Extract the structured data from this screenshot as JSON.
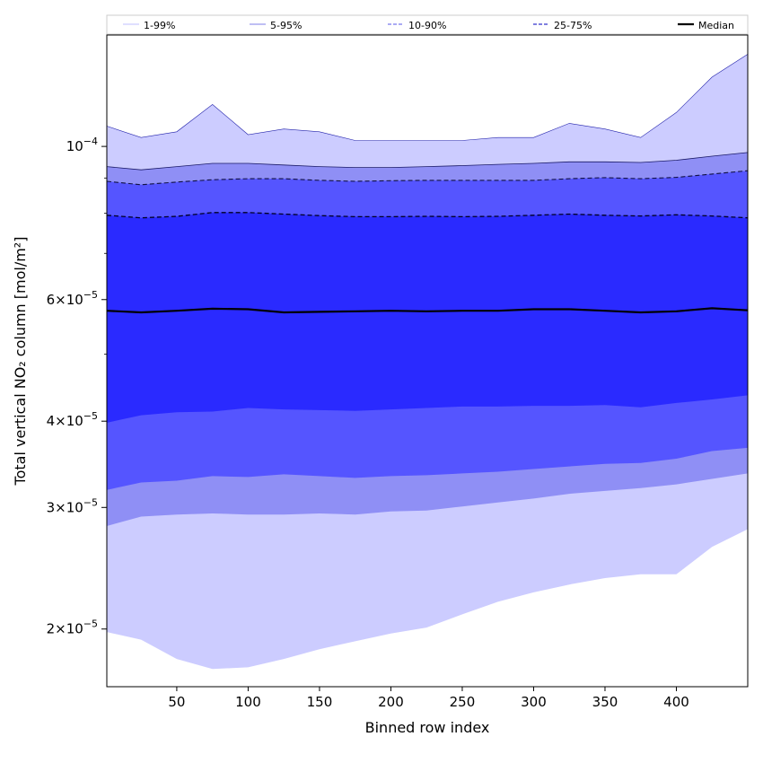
{
  "chart_data": {
    "type": "area",
    "xlabel": "Binned row index",
    "ylabel": "Total vertical NO₂ column [mol/m²]",
    "yscale": "log",
    "xlim": [
      1,
      450
    ],
    "ylim": [
      1.65e-05,
      0.000145
    ],
    "x_ticks": [
      50,
      100,
      150,
      200,
      250,
      300,
      350,
      400
    ],
    "y_ticks": [
      {
        "value": 0.0001,
        "mant": "",
        "exp": "−4"
      },
      {
        "value": 6e-05,
        "mant": "6",
        "exp": "−5"
      },
      {
        "value": 4e-05,
        "mant": "4",
        "exp": "−5"
      },
      {
        "value": 3e-05,
        "mant": "3",
        "exp": "−5"
      },
      {
        "value": 2e-05,
        "mant": "2",
        "exp": "−5"
      }
    ],
    "y_minor_ticks": [
      5e-05,
      7e-05,
      8e-05,
      9e-05
    ],
    "legend": {
      "position": "top",
      "entries": [
        {
          "label": "1-99%",
          "color": "#ccccff",
          "style": "solid"
        },
        {
          "label": "5-95%",
          "color": "#9999ee",
          "style": "solid"
        },
        {
          "label": "10-90%",
          "color": "#7777ee",
          "style": "dashed"
        },
        {
          "label": "25-75%",
          "color": "#3333cc",
          "style": "dashed"
        },
        {
          "label": "Median",
          "color": "#000000",
          "style": "solid"
        }
      ]
    },
    "x": [
      1,
      25,
      50,
      75,
      100,
      125,
      150,
      175,
      200,
      225,
      250,
      275,
      300,
      325,
      350,
      375,
      400,
      425,
      450
    ],
    "bands": [
      {
        "name": "1-99%",
        "color": "#ccccff",
        "lower": [
          1.98e-05,
          1.93e-05,
          1.81e-05,
          1.75e-05,
          1.76e-05,
          1.81e-05,
          1.87e-05,
          1.92e-05,
          1.97e-05,
          2.01e-05,
          2.1e-05,
          2.19e-05,
          2.26e-05,
          2.32e-05,
          2.37e-05,
          2.4e-05,
          2.4e-05,
          2.63e-05,
          2.79e-05
        ],
        "upper": [
          0.000107,
          0.000103,
          0.000105,
          0.000115,
          0.000104,
          0.000106,
          0.000105,
          0.000102,
          0.000102,
          0.000102,
          0.000102,
          0.000103,
          0.000103,
          0.000108,
          0.000106,
          0.000103,
          0.000112,
          0.000126,
          0.000136
        ]
      },
      {
        "name": "5-95%",
        "color": "#8f8ff5",
        "lower": [
          2.82e-05,
          2.91e-05,
          2.93e-05,
          2.94e-05,
          2.93e-05,
          2.93e-05,
          2.94e-05,
          2.93e-05,
          2.96e-05,
          2.97e-05,
          3.01e-05,
          3.05e-05,
          3.09e-05,
          3.14e-05,
          3.17e-05,
          3.2e-05,
          3.24e-05,
          3.3e-05,
          3.36e-05
        ],
        "upper": [
          9.35e-05,
          9.25e-05,
          9.35e-05,
          9.45e-05,
          9.45e-05,
          9.4e-05,
          9.35e-05,
          9.32e-05,
          9.32e-05,
          9.35e-05,
          9.38e-05,
          9.42e-05,
          9.45e-05,
          9.5e-05,
          9.5e-05,
          9.48e-05,
          9.55e-05,
          9.68e-05,
          9.8e-05
        ]
      },
      {
        "name": "10-90%",
        "color": "#5555ff",
        "lower": [
          3.18e-05,
          3.26e-05,
          3.28e-05,
          3.33e-05,
          3.32e-05,
          3.35e-05,
          3.33e-05,
          3.31e-05,
          3.33e-05,
          3.34e-05,
          3.36e-05,
          3.38e-05,
          3.41e-05,
          3.44e-05,
          3.47e-05,
          3.48e-05,
          3.53e-05,
          3.62e-05,
          3.66e-05
        ],
        "upper": [
          8.9e-05,
          8.8e-05,
          8.88e-05,
          8.95e-05,
          8.98e-05,
          8.98e-05,
          8.93e-05,
          8.9e-05,
          8.92e-05,
          8.93e-05,
          8.93e-05,
          8.93e-05,
          8.93e-05,
          8.98e-05,
          9.01e-05,
          8.98e-05,
          9.02e-05,
          9.12e-05,
          9.22e-05
        ]
      },
      {
        "name": "25-75%",
        "color": "#2a2aff",
        "lower": [
          3.98e-05,
          4.08e-05,
          4.12e-05,
          4.13e-05,
          4.18e-05,
          4.16e-05,
          4.15e-05,
          4.14e-05,
          4.16e-05,
          4.18e-05,
          4.2e-05,
          4.2e-05,
          4.21e-05,
          4.21e-05,
          4.22e-05,
          4.19e-05,
          4.25e-05,
          4.3e-05,
          4.36e-05
        ],
        "upper": [
          7.95e-05,
          7.88e-05,
          7.92e-05,
          8.02e-05,
          8.02e-05,
          7.98e-05,
          7.94e-05,
          7.91e-05,
          7.91e-05,
          7.92e-05,
          7.91e-05,
          7.92e-05,
          7.95e-05,
          7.98e-05,
          7.95e-05,
          7.93e-05,
          7.96e-05,
          7.93e-05,
          7.88e-05
        ]
      }
    ],
    "median": {
      "name": "Median",
      "color": "#000000",
      "values": [
        5.78e-05,
        5.75e-05,
        5.78e-05,
        5.82e-05,
        5.81e-05,
        5.75e-05,
        5.76e-05,
        5.77e-05,
        5.78e-05,
        5.77e-05,
        5.78e-05,
        5.78e-05,
        5.81e-05,
        5.81e-05,
        5.78e-05,
        5.75e-05,
        5.77e-05,
        5.83e-05,
        5.79e-05
      ]
    }
  }
}
